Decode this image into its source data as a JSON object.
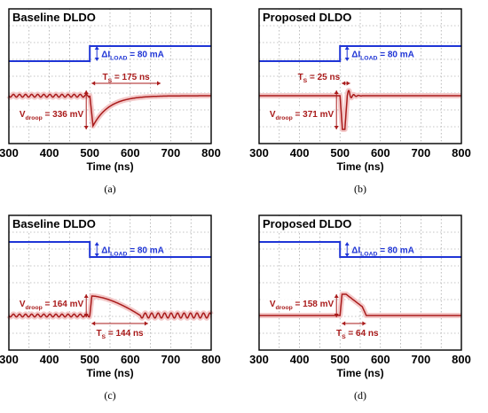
{
  "colors": {
    "load": "#1f35d6",
    "vout": "#a91b1b",
    "vout_band": "#f3c9c9",
    "grid": "#8c8c8c"
  },
  "x_axis": {
    "label": "Time (ns)",
    "ticks": [
      "300",
      "400",
      "500",
      "600",
      "700",
      "800"
    ]
  },
  "chart_data": [
    {
      "type": "line",
      "panel": "a",
      "title": "Baseline DLDO",
      "caption": "(a)",
      "xlabel": "Time (ns)",
      "xlim": [
        300,
        800
      ],
      "load_step": {
        "direction": "up",
        "time_ns": 500
      },
      "delta_label": "ΔI",
      "delta_sub": "LOAD",
      "delta_value": " = 80 mA",
      "vdroop_label": "V",
      "vdroop_sub": "droop",
      "vdroop_value": " = 336 mV",
      "ts_label": "T",
      "ts_sub": "S",
      "ts_value": " = 175 ns",
      "vout": {
        "ripple": true,
        "event": "undershoot",
        "depth_mV": 336,
        "settle_ns": 175,
        "recovery": "exponential"
      }
    },
    {
      "type": "line",
      "panel": "b",
      "title": "Proposed DLDO",
      "caption": "(b)",
      "xlabel": "Time (ns)",
      "xlim": [
        300,
        800
      ],
      "load_step": {
        "direction": "up",
        "time_ns": 500
      },
      "delta_label": "ΔI",
      "delta_sub": "LOAD",
      "delta_value": " = 80 mA",
      "vdroop_label": "V",
      "vdroop_sub": "droop",
      "vdroop_value": " = 371 mV",
      "ts_label": "T",
      "ts_sub": "S",
      "ts_value": " = 25 ns",
      "vout": {
        "ripple": false,
        "event": "undershoot",
        "depth_mV": 371,
        "settle_ns": 25,
        "recovery": "fast"
      }
    },
    {
      "type": "line",
      "panel": "c",
      "title": "Baseline DLDO",
      "caption": "(c)",
      "xlabel": "Time (ns)",
      "xlim": [
        300,
        800
      ],
      "load_step": {
        "direction": "down",
        "time_ns": 500
      },
      "delta_label": "ΔI",
      "delta_sub": "LOAD",
      "delta_value": " = 80 mA",
      "vdroop_label": "V",
      "vdroop_sub": "droop",
      "vdroop_value": " = 164 mV",
      "ts_label": "T",
      "ts_sub": "S",
      "ts_value": " = 144 ns",
      "vout": {
        "ripple": true,
        "event": "overshoot",
        "depth_mV": 164,
        "settle_ns": 144,
        "recovery": "slow"
      }
    },
    {
      "type": "line",
      "panel": "d",
      "title": "Proposed DLDO",
      "caption": "(d)",
      "xlabel": "Time (ns)",
      "xlim": [
        300,
        800
      ],
      "load_step": {
        "direction": "down",
        "time_ns": 500
      },
      "delta_label": "ΔI",
      "delta_sub": "LOAD",
      "delta_value": " = 80 mA",
      "vdroop_label": "V",
      "vdroop_sub": "droop",
      "vdroop_value": " = 158 mV",
      "ts_label": "T",
      "ts_sub": "S",
      "ts_value": " = 64 ns",
      "vout": {
        "ripple": false,
        "event": "overshoot",
        "depth_mV": 158,
        "settle_ns": 64,
        "recovery": "fast"
      }
    }
  ]
}
